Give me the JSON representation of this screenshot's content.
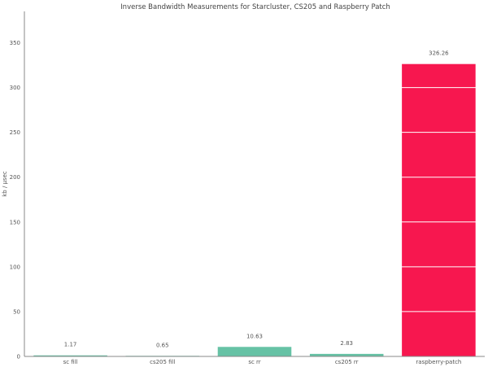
{
  "chart_data": {
    "type": "bar",
    "title": "Inverse Bandwidth Measurements for Starcluster, CS205 and Raspberry Patch",
    "xlabel": "",
    "ylabel": "kb / μsec",
    "categories": [
      "sc fill",
      "cs205 fill",
      "sc rr",
      "cs205 rr",
      "raspberry-patch"
    ],
    "values": [
      1.17,
      0.65,
      10.63,
      2.83,
      326.26
    ],
    "value_labels": [
      "1.17",
      "0.65",
      "10.63",
      "2.83",
      "326.26"
    ],
    "bar_colors": [
      "#66c2a5",
      "#66c2a5",
      "#66c2a5",
      "#66c2a5",
      "#f7174f"
    ],
    "ylim": [
      0,
      385
    ],
    "yticks": [
      0,
      50,
      100,
      150,
      200,
      250,
      300,
      350
    ],
    "grid": "horizontal white lines over bars"
  }
}
